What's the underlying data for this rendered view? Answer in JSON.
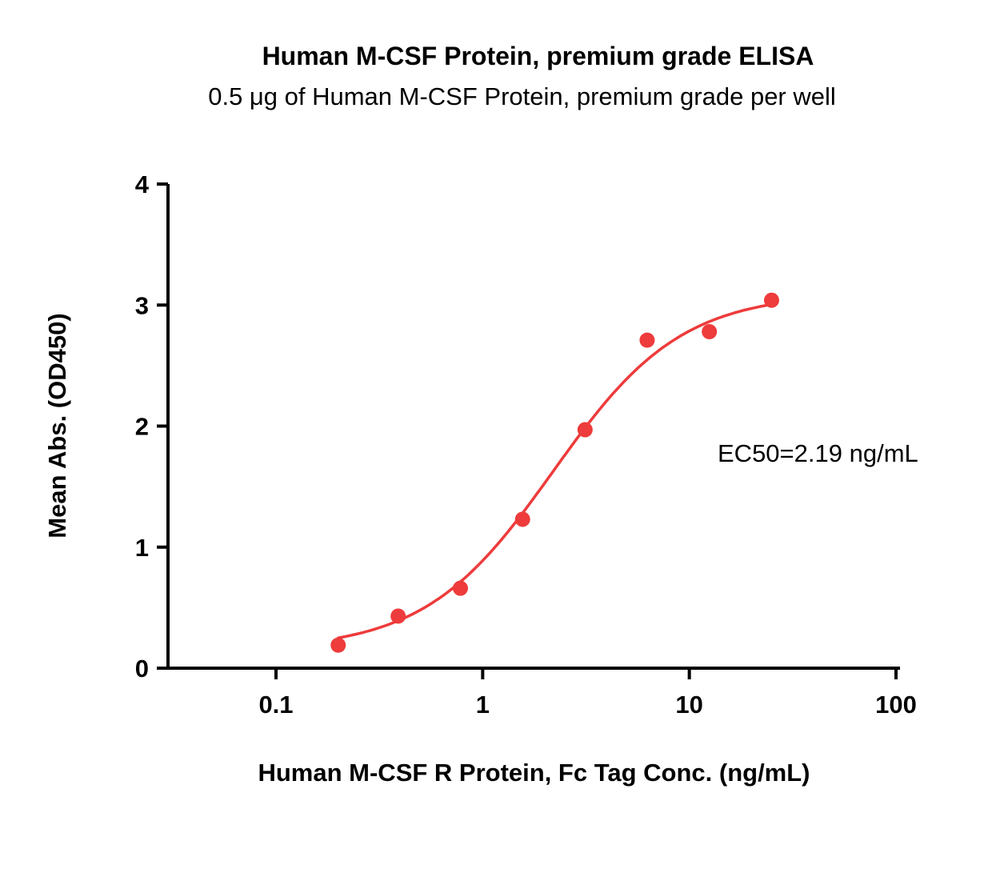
{
  "chart_data": {
    "type": "scatter",
    "title": "Human M-CSF Protein, premium grade ELISA",
    "subtitle": "0.5 μg of Human M-CSF Protein, premium grade per well",
    "xlabel": "Human M-CSF R Protein, Fc Tag Conc. (ng/mL)",
    "ylabel": "Mean Abs. (OD450)",
    "x_scale": "log",
    "ylim": [
      0,
      4
    ],
    "x_ticks": [
      0.1,
      1,
      10,
      100
    ],
    "x_tick_labels": [
      "0.1",
      "1",
      "10",
      "100"
    ],
    "y_ticks": [
      0,
      1,
      2,
      3,
      4
    ],
    "y_tick_labels": [
      "0",
      "1",
      "2",
      "3",
      "4"
    ],
    "grid": false,
    "legend": "none",
    "annotation": "EC50=2.19 ng/mL",
    "points": {
      "x": [
        0.2,
        0.39,
        0.78,
        1.56,
        3.13,
        6.25,
        12.5,
        25
      ],
      "y": [
        0.19,
        0.43,
        0.66,
        1.23,
        1.97,
        2.71,
        2.78,
        3.04
      ]
    },
    "fit": {
      "model": "4PL",
      "ec50": 2.19,
      "hill": 1.4,
      "bottom": 0.15,
      "top": 3.1
    },
    "colors": {
      "curve": "#ee3b3b",
      "points": "#ee3b3b",
      "axis": "#000000"
    }
  }
}
